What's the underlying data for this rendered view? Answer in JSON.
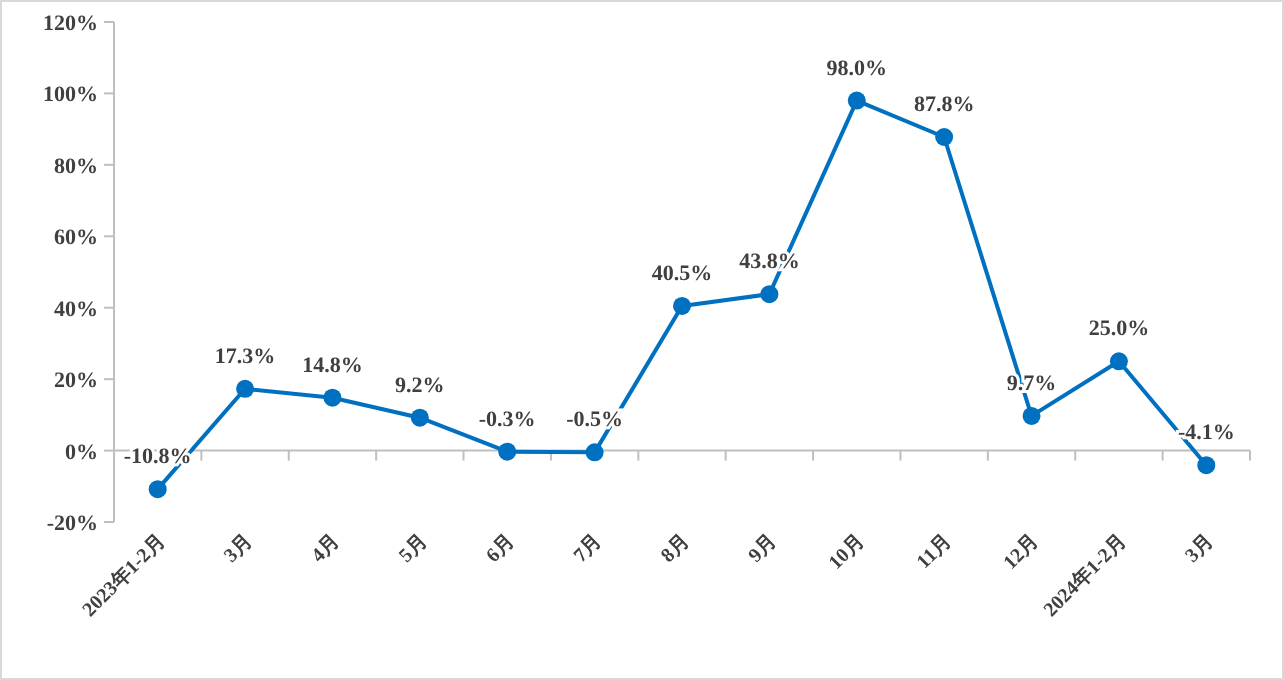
{
  "chart_data": {
    "type": "line",
    "categories": [
      "2023年1-2月",
      "3月",
      "4月",
      "5月",
      "6月",
      "7月",
      "8月",
      "9月",
      "10月",
      "11月",
      "12月",
      "2024年1-2月",
      "3月"
    ],
    "series": [
      {
        "color": "#0070c0",
        "values": [
          -10.8,
          17.3,
          14.8,
          9.2,
          -0.3,
          -0.5,
          40.5,
          43.8,
          98.0,
          87.8,
          9.7,
          25.0,
          -4.1
        ],
        "value_labels": [
          "-10.8%",
          "17.3%",
          "14.8%",
          "9.2%",
          "-0.3%",
          "-0.5%",
          "40.5%",
          "43.8%",
          "98.0%",
          "87.8%",
          "9.7%",
          "25.0%",
          "-4.1%"
        ]
      }
    ],
    "ylim": [
      -20,
      120
    ],
    "yticks": [
      {
        "value": -20,
        "label": "-20%"
      },
      {
        "value": 0,
        "label": "0%"
      },
      {
        "value": 20,
        "label": "20%"
      },
      {
        "value": 40,
        "label": "40%"
      },
      {
        "value": 60,
        "label": "60%"
      },
      {
        "value": 80,
        "label": "80%"
      },
      {
        "value": 100,
        "label": "100%"
      },
      {
        "value": 120,
        "label": "120%"
      }
    ],
    "marker": "circle",
    "line_style": "solid"
  }
}
